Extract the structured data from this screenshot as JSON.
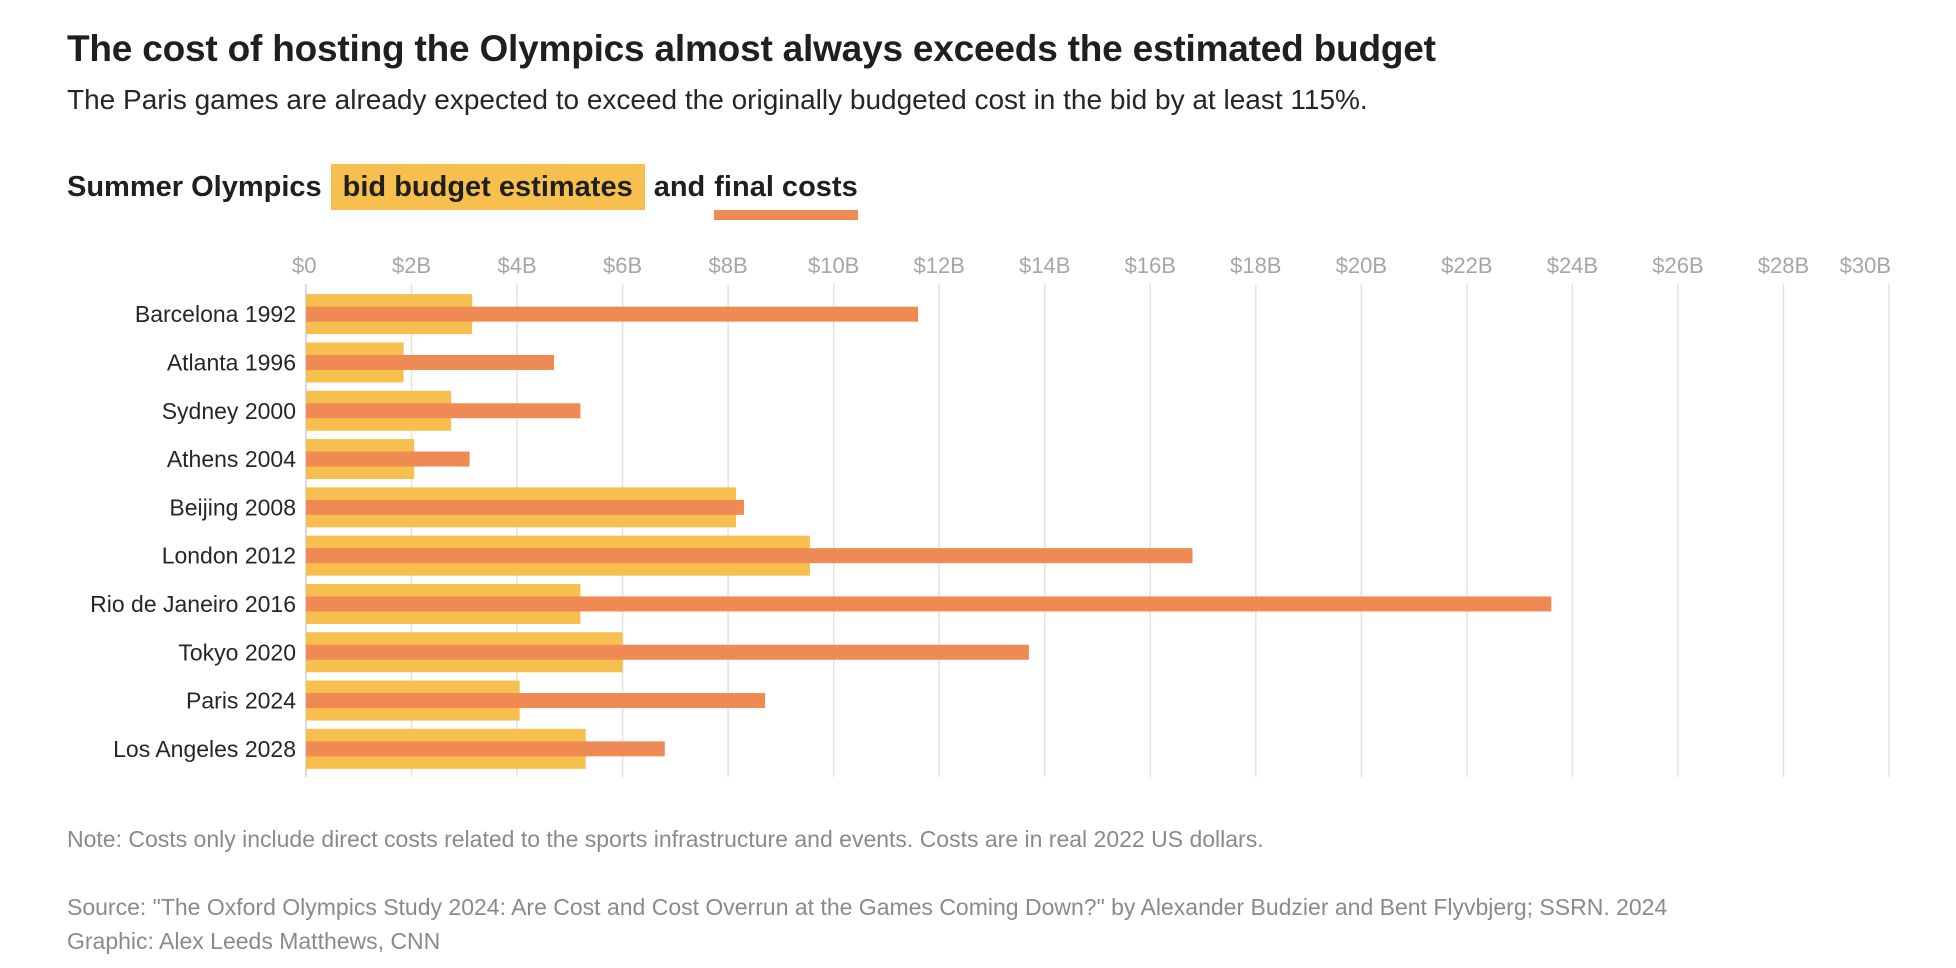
{
  "header": {
    "title": "The cost of hosting the Olympics almost always exceeds the estimated budget",
    "subtitle": "The Paris games are already expected to exceed the originally budgeted cost in the bid by at least 115%."
  },
  "legend": {
    "prefix": "Summer Olympics",
    "budget_label": "bid budget estimates",
    "connector": "and",
    "final_label": "final costs"
  },
  "colors": {
    "budget": "#f7bf4d",
    "final": "#ef8a54",
    "grid": "#e3e3e3",
    "tick_text": "#a6a6a6",
    "label_text": "#262626"
  },
  "chart_data": {
    "type": "bar",
    "orientation": "horizontal",
    "categories": [
      "Barcelona 1992",
      "Atlanta 1996",
      "Sydney 2000",
      "Athens 2004",
      "Beijing 2008",
      "London 2012",
      "Rio de Janeiro 2016",
      "Tokyo 2020",
      "Paris 2024",
      "Los Angeles 2028"
    ],
    "series": [
      {
        "name": "bid budget estimates",
        "values": [
          3.15,
          1.85,
          2.75,
          2.05,
          8.15,
          9.55,
          5.2,
          6.0,
          4.05,
          5.3
        ]
      },
      {
        "name": "final costs",
        "values": [
          11.6,
          4.7,
          5.2,
          3.1,
          8.3,
          16.8,
          23.6,
          13.7,
          8.7,
          6.8
        ]
      }
    ],
    "x_ticks": [
      "$0",
      "$2B",
      "$4B",
      "$6B",
      "$8B",
      "$10B",
      "$12B",
      "$14B",
      "$16B",
      "$18B",
      "$20B",
      "$22B",
      "$24B",
      "$26B",
      "$28B",
      "$30B"
    ],
    "xlim": [
      0,
      30
    ],
    "grid": true,
    "legend_placement": "top-left"
  },
  "footer": {
    "note": "Note: Costs only include direct costs related to the sports infrastructure and events. Costs are in real 2022 US dollars.",
    "source": "Source: \"The Oxford Olympics Study 2024: Are Cost and Cost Overrun at the Games Coming Down?\" by Alexander Budzier and Bent Flyvbjerg; SSRN. 2024",
    "credit": "Graphic: Alex Leeds Matthews, CNN"
  }
}
